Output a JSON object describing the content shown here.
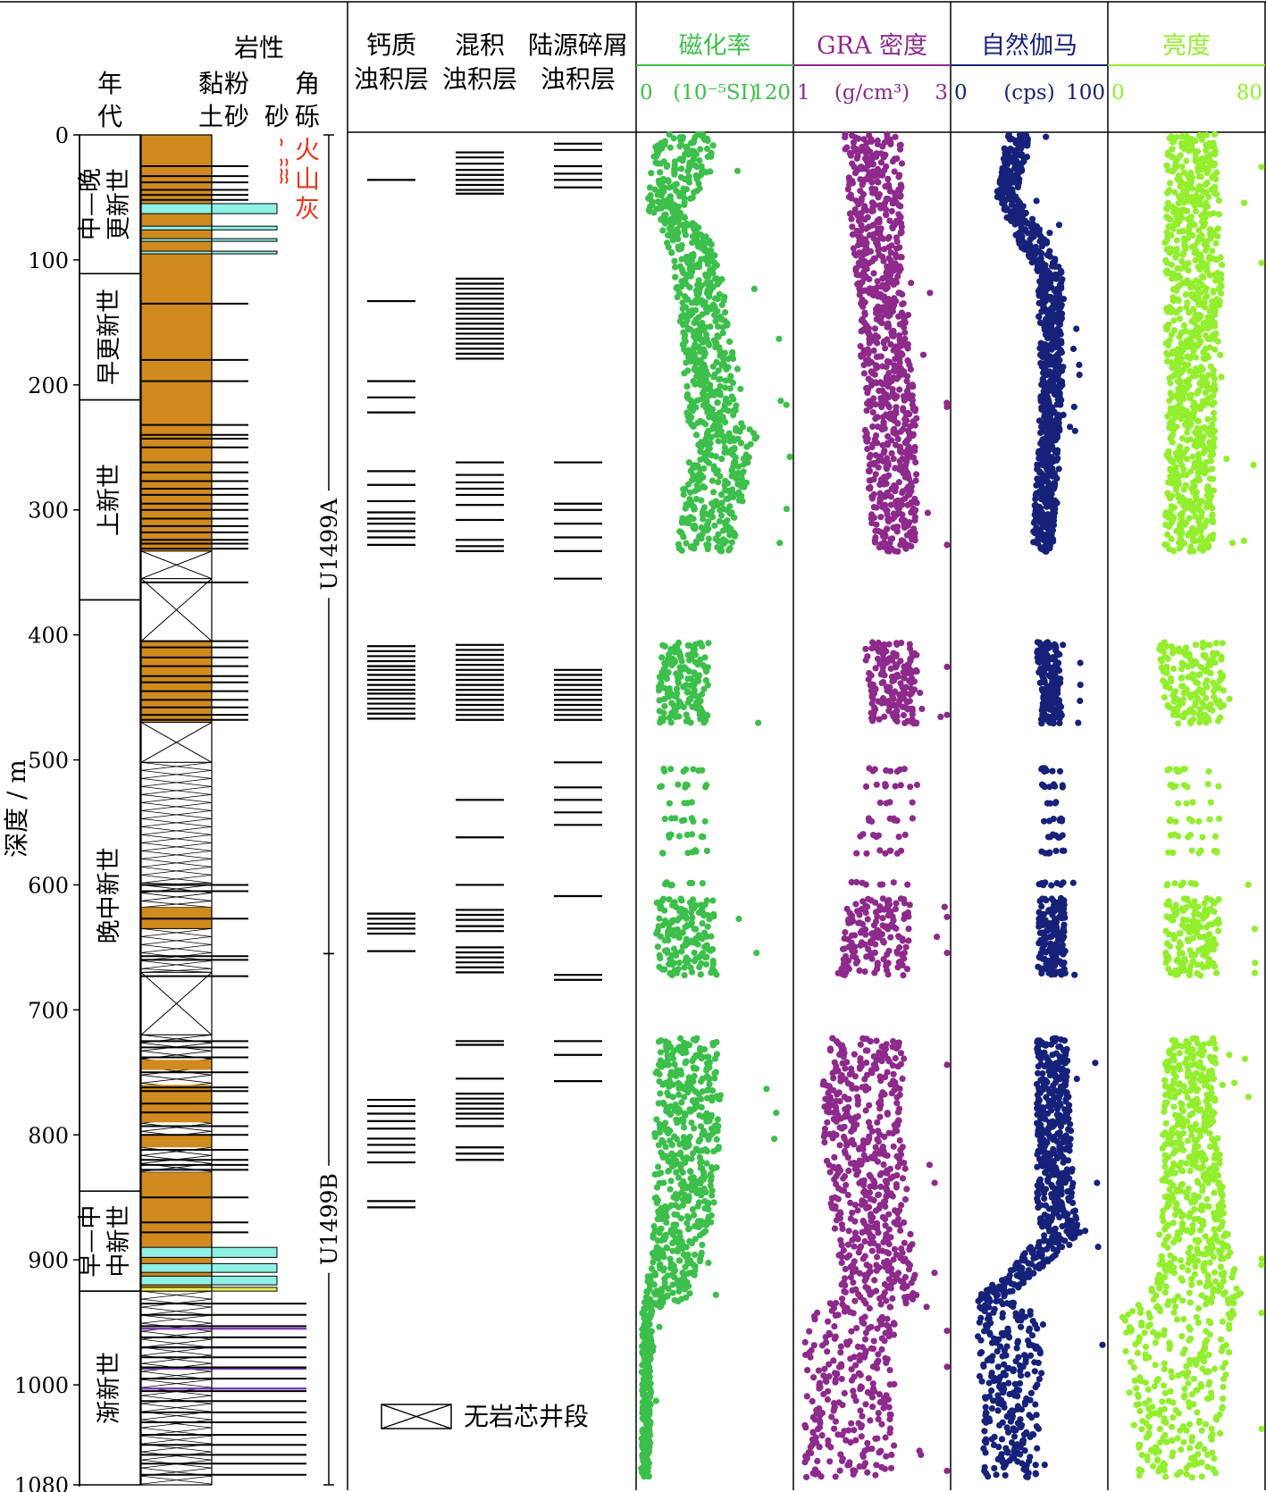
{
  "chart_data": {
    "type": "scatter",
    "depth_axis": {
      "label": "深度 / m",
      "range": [
        0,
        1080
      ],
      "ticks": [
        0,
        100,
        200,
        300,
        400,
        500,
        600,
        700,
        800,
        900,
        1000,
        1080
      ]
    },
    "ages": {
      "header": "年代",
      "units": [
        {
          "name": "中—晚更新世",
          "lines": [
            "中—晚",
            "更新世"
          ],
          "top": 0,
          "bottom": 111
        },
        {
          "name": "早更新世",
          "lines": [
            "早更新世"
          ],
          "top": 111,
          "bottom": 212
        },
        {
          "name": "上新世",
          "lines": [
            "上新世"
          ],
          "top": 212,
          "bottom": 372
        },
        {
          "name": "晚中新世",
          "lines": [
            "晚中新世"
          ],
          "top": 372,
          "bottom": 845
        },
        {
          "name": "早—中中新世",
          "lines": [
            "早—中",
            "中新世"
          ],
          "top": 845,
          "bottom": 925
        },
        {
          "name": "渐新世",
          "lines": [
            "渐新世"
          ],
          "top": 925,
          "bottom": 1080
        }
      ]
    },
    "lithology": {
      "header": "岩性",
      "grain_sizes": [
        {
          "label": "黏土",
          "lines": [
            "黏",
            "土"
          ]
        },
        {
          "label": "粉砂",
          "lines": [
            "粉",
            "砂"
          ]
        },
        {
          "label": "砂",
          "lines": [
            "砂"
          ]
        },
        {
          "label": "角砾",
          "lines": [
            "角",
            "砾"
          ]
        }
      ],
      "volcanic_ash_label": "火山灰",
      "ash_color": "#e8351e",
      "units": [
        {
          "top": 0,
          "bottom": 333,
          "type": "clay"
        },
        {
          "top": 333,
          "bottom": 355,
          "type": "no_core"
        },
        {
          "top": 355,
          "bottom": 405,
          "type": "no_core"
        },
        {
          "top": 405,
          "bottom": 470,
          "type": "clay"
        },
        {
          "top": 470,
          "bottom": 502,
          "type": "no_core"
        },
        {
          "top": 502,
          "bottom": 600,
          "type": "no_core_dense"
        },
        {
          "top": 600,
          "bottom": 618,
          "type": "no_core_dense"
        },
        {
          "top": 618,
          "bottom": 635,
          "type": "clay"
        },
        {
          "top": 635,
          "bottom": 670,
          "type": "no_core_dense"
        },
        {
          "top": 670,
          "bottom": 720,
          "type": "no_core"
        },
        {
          "top": 720,
          "bottom": 830,
          "type": "no_core_dense_clay"
        },
        {
          "top": 830,
          "bottom": 890,
          "type": "clay"
        },
        {
          "top": 890,
          "bottom": 925,
          "type": "sand_layers"
        },
        {
          "top": 925,
          "bottom": 1080,
          "type": "no_core_dense"
        }
      ],
      "sand_beds": [
        {
          "top": 55,
          "bottom": 63,
          "extent": "sand",
          "color": "#8ff0e6"
        },
        {
          "top": 73,
          "bottom": 76,
          "extent": "sand",
          "color": "#8ff0e6"
        },
        {
          "top": 83,
          "bottom": 85,
          "extent": "sand",
          "color": "#8ff0e6"
        },
        {
          "top": 93,
          "bottom": 95,
          "extent": "sand",
          "color": "#8ff0e6"
        },
        {
          "top": 890,
          "bottom": 898,
          "extent": "sand",
          "color": "#8ff0e6"
        },
        {
          "top": 903,
          "bottom": 910,
          "extent": "sand",
          "color": "#8ff0e6"
        },
        {
          "top": 913,
          "bottom": 920,
          "extent": "sand",
          "color": "#8ff0e6"
        },
        {
          "top": 922,
          "bottom": 925,
          "extent": "sand",
          "color": "#e8f050"
        }
      ],
      "silt_lines": [
        25,
        33,
        38,
        44,
        48,
        52,
        135,
        180,
        197,
        232,
        240,
        243,
        250,
        262,
        270,
        277,
        283,
        288,
        295,
        300,
        307,
        313,
        318,
        324,
        327,
        331,
        358,
        405,
        410,
        418,
        425,
        433,
        438,
        445,
        452,
        458,
        464,
        468,
        600,
        605,
        627,
        657,
        660,
        673,
        725,
        730,
        738,
        750,
        762,
        765,
        775,
        782,
        793,
        800,
        812,
        820,
        824,
        828,
        850,
        870,
        878
      ],
      "breccia_lines": [
        935,
        944,
        953,
        962,
        970,
        978,
        986,
        995,
        1005,
        1013,
        1022,
        1030,
        1040,
        1048,
        1056,
        1063,
        1072
      ],
      "purple_lines": [
        955,
        970,
        987,
        1003
      ]
    },
    "holes": [
      {
        "name": "U1499A",
        "top": 0,
        "bottom": 655
      },
      {
        "name": "U1499B",
        "top": 655,
        "bottom": 1080
      }
    ],
    "turbidite_columns": [
      {
        "name": "钙质浊积层",
        "lines": [
          "钙质",
          "浊积层"
        ],
        "depths": [
          36,
          133,
          197,
          210,
          222,
          269,
          280,
          293,
          302,
          307,
          311,
          317,
          322,
          328,
          409,
          413,
          417,
          421,
          425,
          428,
          432,
          436,
          440,
          444,
          447,
          451,
          455,
          459,
          463,
          467,
          623,
          627,
          631,
          635,
          639,
          653,
          772,
          777,
          783,
          789,
          795,
          803,
          808,
          814,
          822,
          853,
          858
        ]
      },
      {
        "name": "混积浊积层",
        "lines": [
          "混积",
          "浊积层"
        ],
        "depths": [
          14,
          18,
          23,
          28,
          32,
          36,
          40,
          44,
          47,
          115,
          119,
          123,
          127,
          131,
          135,
          139,
          143,
          147,
          151,
          155,
          159,
          163,
          167,
          171,
          175,
          179,
          262,
          272,
          278,
          283,
          288,
          296,
          308,
          324,
          329,
          333,
          408,
          412,
          416,
          420,
          424,
          428,
          432,
          436,
          440,
          444,
          448,
          452,
          456,
          460,
          464,
          468,
          532,
          562,
          600,
          620,
          624,
          628,
          633,
          637,
          650,
          654,
          658,
          662,
          666,
          670,
          725,
          728,
          755,
          767,
          771,
          775,
          779,
          783,
          787,
          793,
          810,
          815,
          820
        ]
      },
      {
        "name": "陆源碎屑浊积层",
        "lines": [
          "陆源碎屑",
          "浊积层"
        ],
        "depths": [
          7,
          12,
          25,
          31,
          36,
          42,
          262,
          295,
          300,
          311,
          322,
          333,
          355,
          428,
          432,
          436,
          440,
          444,
          448,
          452,
          456,
          460,
          464,
          468,
          502,
          522,
          532,
          542,
          552,
          609,
          672,
          676,
          725,
          736,
          757
        ]
      }
    ],
    "no_core_legend": "无岩芯井段",
    "curves": [
      {
        "name": "磁化率",
        "unit_label": "(10⁻⁵SI)",
        "unit": "(10^-5 SI)",
        "range": [
          0,
          120
        ],
        "color": "#3dbf4b",
        "profile": [
          [
            0,
            12,
            60
          ],
          [
            40,
            8,
            55
          ],
          [
            60,
            6,
            30
          ],
          [
            80,
            20,
            55
          ],
          [
            110,
            28,
            65
          ],
          [
            180,
            35,
            75
          ],
          [
            228,
            38,
            80
          ],
          [
            240,
            45,
            95
          ],
          [
            280,
            35,
            85
          ],
          [
            333,
            30,
            75
          ],
          [
            410,
            15,
            55
          ],
          [
            470,
            15,
            55
          ],
          [
            780,
            12,
            65
          ],
          [
            860,
            12,
            60
          ],
          [
            930,
            5,
            40
          ],
          [
            940,
            2,
            10
          ],
          [
            1080,
            1,
            8
          ]
        ]
      },
      {
        "name": "GRA 密度",
        "unit_label": "(g/cm³)",
        "unit": "(g/cm^3)",
        "range": [
          1,
          3
        ],
        "color": "#8e2a8c",
        "profile": [
          [
            0,
            1.6,
            2.4
          ],
          [
            120,
            1.8,
            2.4
          ],
          [
            230,
            1.9,
            2.6
          ],
          [
            333,
            2.0,
            2.6
          ],
          [
            410,
            1.9,
            2.6
          ],
          [
            470,
            2.0,
            2.6
          ],
          [
            780,
            1.3,
            2.4
          ],
          [
            930,
            1.6,
            2.6
          ],
          [
            940,
            1.1,
            2.3
          ],
          [
            1080,
            1.1,
            2.3
          ]
        ]
      },
      {
        "name": "自然伽马",
        "unit_label": "(cps)",
        "unit": "(cps)",
        "range": [
          0,
          100
        ],
        "color": "#162279",
        "profile": [
          [
            0,
            35,
            50
          ],
          [
            50,
            28,
            42
          ],
          [
            80,
            40,
            60
          ],
          [
            110,
            55,
            72
          ],
          [
            200,
            58,
            72
          ],
          [
            333,
            52,
            66
          ],
          [
            410,
            55,
            70
          ],
          [
            470,
            58,
            72
          ],
          [
            730,
            55,
            75
          ],
          [
            850,
            55,
            80
          ],
          [
            880,
            58,
            85
          ],
          [
            910,
            35,
            55
          ],
          [
            930,
            15,
            35
          ],
          [
            945,
            15,
            60
          ],
          [
            1080,
            20,
            55
          ]
        ]
      },
      {
        "name": "亮度",
        "unit_label": "",
        "unit": "",
        "range": [
          0,
          80
        ],
        "color": "#93ee2e",
        "profile": [
          [
            0,
            30,
            55
          ],
          [
            100,
            28,
            60
          ],
          [
            230,
            30,
            55
          ],
          [
            333,
            28,
            55
          ],
          [
            410,
            25,
            60
          ],
          [
            470,
            30,
            60
          ],
          [
            780,
            28,
            55
          ],
          [
            900,
            25,
            65
          ],
          [
            930,
            20,
            70
          ],
          [
            945,
            5,
            65
          ],
          [
            1080,
            15,
            55
          ]
        ]
      }
    ],
    "core_gaps": [
      [
        0,
        0
      ],
      [
        333,
        356
      ],
      [
        361,
        405
      ],
      [
        472,
        502
      ],
      [
        584,
        598
      ],
      [
        673,
        723
      ],
      [
        1075,
        1080
      ]
    ],
    "ylim": [
      0,
      1080
    ]
  }
}
